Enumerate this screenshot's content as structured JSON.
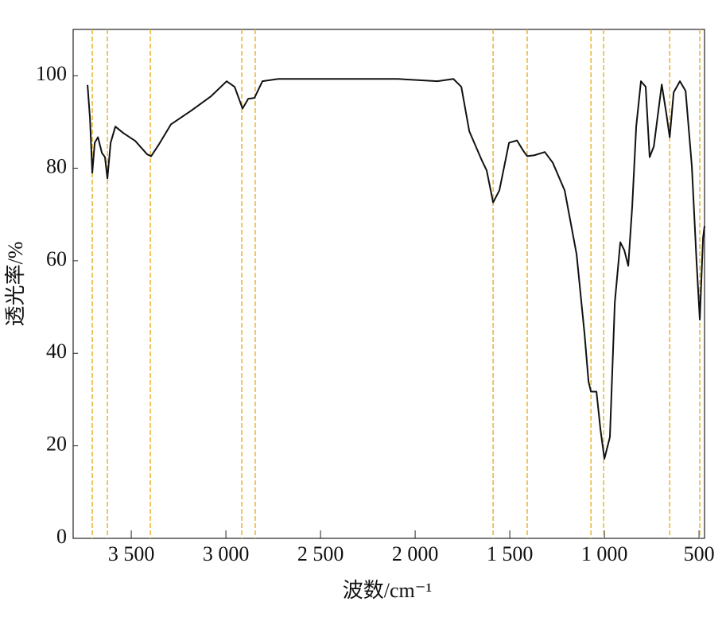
{
  "chart_data": {
    "type": "line",
    "xlabel": "波数/cm⁻¹",
    "ylabel": "透光率/%",
    "x": [
      3731,
      3718,
      3706,
      3693,
      3676,
      3655,
      3639,
      3626,
      3609,
      3584,
      3542,
      3479,
      3416,
      3395,
      3353,
      3290,
      3185,
      3080,
      2996,
      2954,
      2912,
      2882,
      2849,
      2807,
      2723,
      2303,
      2092,
      1882,
      1798,
      1756,
      1714,
      1651,
      1622,
      1588,
      1555,
      1504,
      1462,
      1429,
      1408,
      1370,
      1315,
      1273,
      1210,
      1147,
      1105,
      1084,
      1071,
      1042,
      1021,
      1000,
      971,
      945,
      916,
      895,
      874,
      853,
      832,
      807,
      782,
      761,
      739,
      697,
      672,
      655,
      634,
      601,
      571,
      538,
      513,
      496,
      479,
      471
    ],
    "series": [
      {
        "color": "#111111",
        "values": [
          98,
          90.7,
          79,
          85.5,
          86.7,
          83.3,
          82.4,
          77.8,
          85.5,
          89,
          87.6,
          85.9,
          83,
          82.6,
          85.2,
          89.5,
          92.4,
          95.5,
          98.8,
          97.6,
          92.9,
          95,
          95.2,
          98.8,
          99.3,
          99.3,
          99.3,
          98.8,
          99.3,
          97.6,
          88,
          82,
          79.5,
          72.6,
          75.2,
          85.5,
          86,
          83.8,
          82.6,
          82.8,
          83.5,
          81.2,
          75.2,
          61.4,
          44.2,
          33.9,
          31.7,
          31.7,
          23.6,
          17.2,
          21.9,
          51,
          64,
          62.3,
          58.9,
          71.8,
          89,
          98.8,
          97.6,
          82.4,
          84.7,
          98.1,
          91.6,
          86.7,
          96.4,
          98.8,
          96.7,
          80.4,
          59.7,
          47.3,
          64.9,
          67.5
        ]
      }
    ],
    "reference_lines": {
      "color": "#e8b530",
      "x": [
        3706,
        3626,
        3399,
        2916,
        2845,
        1588,
        1408,
        1071,
        1004,
        655,
        496
      ]
    },
    "xlim": [
      3807,
      471
    ],
    "ylim": [
      0,
      110
    ],
    "xticks": [
      {
        "value": 3500,
        "label": "3 500"
      },
      {
        "value": 3000,
        "label": "3 000"
      },
      {
        "value": 2500,
        "label": "2 500"
      },
      {
        "value": 2000,
        "label": "2 000"
      },
      {
        "value": 1500,
        "label": "1 500"
      },
      {
        "value": 1000,
        "label": "1 000"
      },
      500
    ],
    "yticks": [
      0,
      20,
      40,
      60,
      80,
      100
    ]
  }
}
